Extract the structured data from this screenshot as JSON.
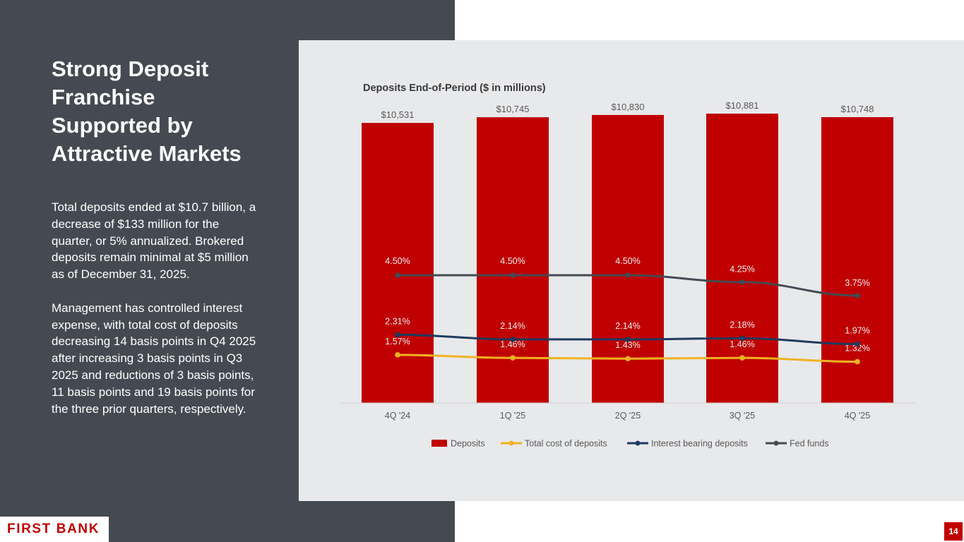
{
  "slide": {
    "title": "Strong Deposit Franchise Supported by Attractive Markets",
    "paragraphs": [
      "Total deposits ended at $10.7 billion, a decrease of $133 million for the quarter, or 5% annualized. Brokered deposits remain minimal at $5 million as of December 31, 2025.",
      "Management has controlled interest expense, with total cost of deposits decreasing 14 basis points in Q4 2025 after increasing 3 basis points in Q3 2025 and reductions of 3 basis points, 11 basis points and 19 basis points for the three prior quarters, respectively."
    ],
    "logo": "FIRST BANK",
    "page_number": "14"
  },
  "colors": {
    "bar": "#c00000",
    "total_cost": "#f0b323",
    "interest_bearing": "#1f3a5f",
    "fed_funds": "#454a52"
  },
  "chart_data": {
    "type": "bar",
    "title": "Deposits End-of-Period ($ in millions)",
    "categories": [
      "4Q '24",
      "1Q '25",
      "2Q '25",
      "3Q '25",
      "4Q '25"
    ],
    "bars": {
      "name": "Deposits",
      "values": [
        10531,
        10745,
        10830,
        10881,
        10748
      ],
      "labels": [
        "$10,531",
        "$10,745",
        "$10,830",
        "$10,881",
        "$10,748"
      ]
    },
    "lines": [
      {
        "key": "total_cost",
        "name": "Total cost of deposits",
        "values": [
          1.57,
          1.46,
          1.43,
          1.46,
          1.32
        ],
        "labels": [
          "1.57%",
          "1.46%",
          "1.43%",
          "1.46%",
          "1.32%"
        ]
      },
      {
        "key": "interest_bearing",
        "name": "Interest bearing deposits",
        "values": [
          2.31,
          2.14,
          2.14,
          2.18,
          1.97
        ],
        "labels": [
          "2.31%",
          "2.14%",
          "2.14%",
          "2.18%",
          "1.97%"
        ]
      },
      {
        "key": "fed_funds",
        "name": "Fed funds",
        "values": [
          4.5,
          4.5,
          4.5,
          4.25,
          3.75
        ],
        "labels": [
          "4.50%",
          "4.50%",
          "4.50%",
          "4.25%",
          "3.75%"
        ]
      }
    ],
    "legend": [
      "Deposits",
      "Total cost of deposits",
      "Interest bearing deposits",
      "Fed funds"
    ],
    "legend_position": "bottom",
    "grid": false
  }
}
